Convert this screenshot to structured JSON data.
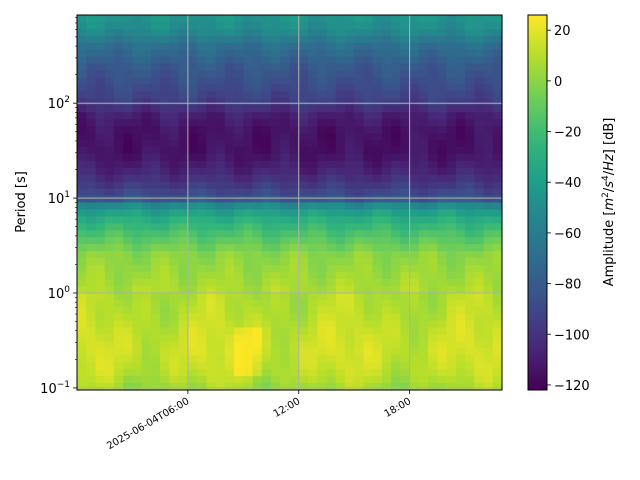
{
  "chart_data": {
    "type": "heatmap",
    "title": "",
    "xlabel": "",
    "ylabel": "Period [s]",
    "colorbar_label": "Amplitude [m²/s⁴/Hz] [dB]",
    "colorbar_label_parts": {
      "prefix": "Amplitude [",
      "unit_m": "m",
      "exp_m": "2",
      "slash1": "/",
      "unit_s": "s",
      "exp_s": "4",
      "slash2": "/",
      "unit_hz": "Hz",
      "suffix": "] [dB]"
    },
    "colormap": "viridis",
    "color_range": [
      -122,
      26
    ],
    "colorbar_ticks": [
      "20",
      "0",
      "−20",
      "−40",
      "−60",
      "−80",
      "−100",
      "−120"
    ],
    "colorbar_tick_values": [
      20,
      0,
      -20,
      -40,
      -60,
      -80,
      -100,
      -120
    ],
    "y_scale": "log",
    "y_range": [
      0.095,
      850
    ],
    "y_ticks": [
      {
        "value": 0.1,
        "base": "10",
        "exp": "−1"
      },
      {
        "value": 1,
        "base": "10",
        "exp": "0"
      },
      {
        "value": 10,
        "base": "10",
        "exp": "1"
      },
      {
        "value": 100,
        "base": "10",
        "exp": "2"
      }
    ],
    "x_range": [
      "2025-06-04T00:00",
      "2025-06-04T23:00"
    ],
    "x_ticks": [
      {
        "value": "2025-06-04T06:00",
        "label": "2025-06-04T06:00"
      },
      {
        "value": "2025-06-04T12:00",
        "label": "12:00"
      },
      {
        "value": "2025-06-04T18:00",
        "label": "18:00"
      }
    ],
    "grid": true,
    "profile": {
      "periods": [
        0.1,
        0.15,
        0.25,
        0.4,
        0.6,
        1.0,
        1.6,
        2.5,
        4,
        6,
        8,
        10,
        15,
        20,
        30,
        50,
        80,
        100,
        150,
        250,
        400,
        600,
        850
      ],
      "amplitude_db": [
        5,
        12,
        15,
        13,
        10,
        8,
        4,
        0,
        -15,
        -30,
        -45,
        -85,
        -100,
        -108,
        -115,
        -115,
        -108,
        -95,
        -88,
        -80,
        -68,
        -50,
        -45
      ]
    }
  }
}
